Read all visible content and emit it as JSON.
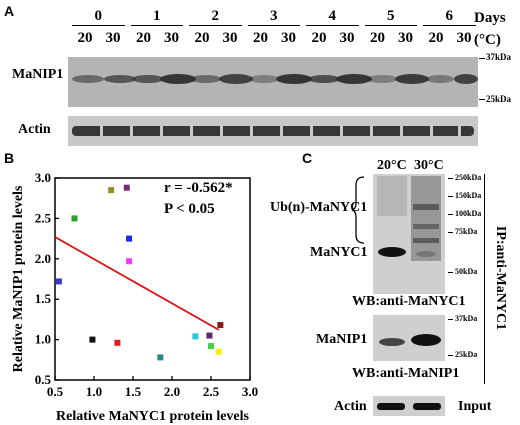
{
  "panel_a": {
    "letter": "A",
    "days_label": "Days",
    "temp_label": "(°C)",
    "days": [
      "0",
      "1",
      "2",
      "3",
      "4",
      "5",
      "6"
    ],
    "temps": [
      "20",
      "30"
    ],
    "row1_label": "MaNIP1",
    "row2_label": "Actin",
    "marker_top": "37kDa",
    "marker_bottom": "25kDa"
  },
  "panel_b": {
    "letter": "B",
    "stats_r": "r = -0.562*",
    "stats_p": "P < 0.05"
  },
  "panel_c": {
    "letter": "C",
    "lane1": "20°C",
    "lane2": "30°C",
    "ub_label": "Ub(n)-MaNYC1",
    "manyc1_label": "MaNYC1",
    "wb1": "WB:anti-MaNYC1",
    "wb2": "WB:anti-MaNIP1",
    "manip1_label": "MaNIP1",
    "actin_label": "Actin",
    "input_label": "Input",
    "ip_label": "IP:anti-MaNYC1",
    "markers1": [
      "250kDa",
      "150kDa",
      "100kDa",
      "75kDa",
      "50kDa"
    ],
    "markers2": [
      "37kDa",
      "25kDa"
    ]
  },
  "chart_data": {
    "type": "scatter",
    "xlabel": "Relative MaNYC1 protein levels",
    "ylabel": "Relative MaNIP1 protein levels",
    "xlim": [
      0.5,
      3.0
    ],
    "ylim": [
      0.5,
      3.0
    ],
    "xticks": [
      "0.5",
      "1.0",
      "1.5",
      "2.0",
      "2.5",
      "3.0"
    ],
    "yticks": [
      "0.5",
      "1.0",
      "1.5",
      "2.0",
      "2.5",
      "3.0"
    ],
    "points": [
      {
        "x": 0.55,
        "y": 1.72,
        "color": "#3a3ac8"
      },
      {
        "x": 0.75,
        "y": 2.5,
        "color": "#2e9e2e"
      },
      {
        "x": 0.98,
        "y": 1.0,
        "color": "#111111"
      },
      {
        "x": 1.22,
        "y": 2.85,
        "color": "#8f8f2a"
      },
      {
        "x": 1.3,
        "y": 0.96,
        "color": "#e01b1b"
      },
      {
        "x": 1.42,
        "y": 2.88,
        "color": "#7a2a7a"
      },
      {
        "x": 1.45,
        "y": 2.25,
        "color": "#1a2ae0"
      },
      {
        "x": 1.45,
        "y": 1.97,
        "color": "#ff33ff"
      },
      {
        "x": 1.85,
        "y": 0.78,
        "color": "#2a8a8a"
      },
      {
        "x": 2.3,
        "y": 1.04,
        "color": "#22c8e0"
      },
      {
        "x": 2.48,
        "y": 1.05,
        "color": "#5a2a6a"
      },
      {
        "x": 2.5,
        "y": 0.92,
        "color": "#44d044"
      },
      {
        "x": 2.6,
        "y": 0.85,
        "color": "#ffee11"
      },
      {
        "x": 2.62,
        "y": 1.18,
        "color": "#8b1a1a"
      }
    ],
    "fit_line": {
      "x": [
        0.5,
        2.6
      ],
      "y": [
        2.27,
        1.12
      ],
      "color": "#dd1111"
    }
  }
}
